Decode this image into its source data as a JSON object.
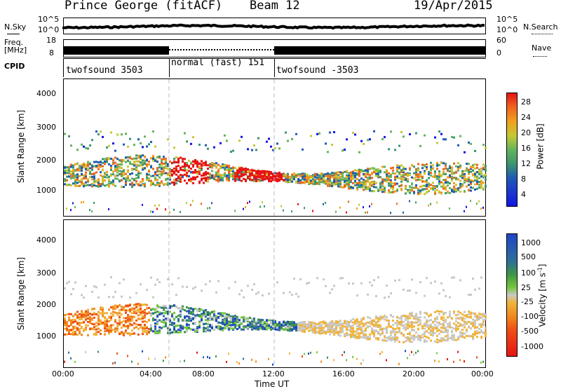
{
  "header": {
    "station": "Prince George (fitACF)",
    "beam": "Beam 12",
    "date": "19/Apr/2015"
  },
  "top_panels": {
    "nsky_label": "N.Sky",
    "nsky_ticks": [
      "10^5",
      "10^0"
    ],
    "nsearch_label": "N.Search",
    "nsearch_ticks": [
      "10^5",
      "10^0"
    ],
    "freq_label_1": "Freq.",
    "freq_label_2": "[MHz]",
    "freq_ticks": [
      "18",
      "8"
    ],
    "nave_label": "Nave",
    "nave_ticks": [
      "60",
      "0"
    ],
    "cpid_label": "CPID",
    "cpid_segments": [
      {
        "label": "twofsound 3503"
      },
      {
        "label": "normal (fast) 151"
      },
      {
        "label": "twofsound -3503"
      }
    ]
  },
  "chart_data": [
    {
      "type": "heatmap",
      "name": "power",
      "ylabel": "Slant Range [km]",
      "ylim": [
        180,
        4600
      ],
      "y_ticks": [
        "4000",
        "3000",
        "2000",
        "1000"
      ],
      "colorbar_label": "Power [dB]",
      "colorbar_ticks": [
        "28",
        "24",
        "20",
        "16",
        "12",
        "8",
        "4"
      ],
      "colors": [
        "#1414e6",
        "#1e5ab4",
        "#3c966e",
        "#64b45a",
        "#c8c832",
        "#f0a01e",
        "#f0641e",
        "#e61414"
      ]
    },
    {
      "type": "heatmap",
      "name": "velocity",
      "ylabel": "Slant Range [km]",
      "ylim": [
        180,
        4600
      ],
      "y_ticks": [
        "4000",
        "3000",
        "2000",
        "1000"
      ],
      "colorbar_label": "Velocity [m s",
      "colorbar_label_sup": "-1",
      "colorbar_label_end": "]",
      "colorbar_ticks": [
        "1000",
        "500",
        "100",
        "25",
        "-25",
        "-100",
        "-500",
        "-1000"
      ],
      "colors": [
        "#1e46c8",
        "#2e6e9a",
        "#3c9646",
        "#78c83c",
        "#c8c8c8",
        "#f0b43c",
        "#f08c1e",
        "#f05014",
        "#e61414"
      ]
    }
  ],
  "x_axis": {
    "ticks": [
      "00:00",
      "04:00",
      "08:00",
      "12:00",
      "16:00",
      "20:00",
      "00:00"
    ],
    "label": "Time UT"
  }
}
